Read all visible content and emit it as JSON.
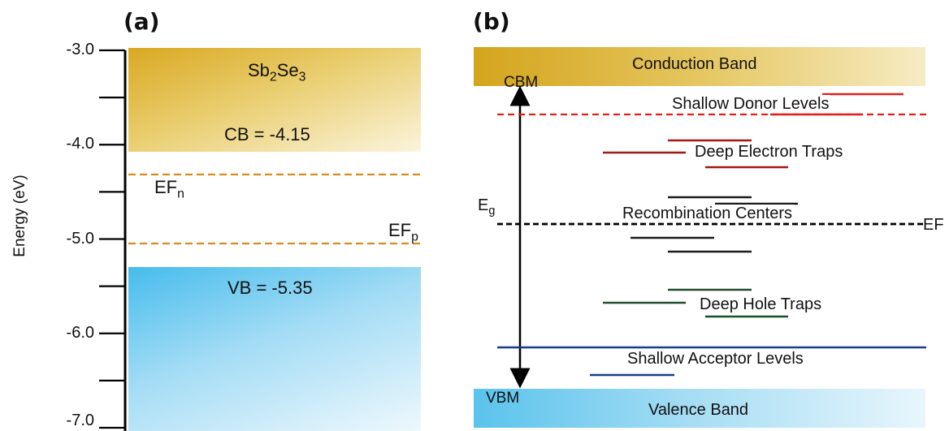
{
  "panel_a": {
    "label": "(a)",
    "axis_title": "Energy (eV)",
    "yticks": [
      "-3.0",
      "-4.0",
      "-5.0",
      "-6.0",
      "-7.0"
    ],
    "material_prefix": "Sb",
    "material_sub1": "2",
    "material_mid": "Se",
    "material_sub2": "3",
    "cb_text": "CB = -4.15",
    "vb_text": "VB = -5.35",
    "efn_main": "EF",
    "efn_sub": "n",
    "efp_main": "EF",
    "efp_sub": "p",
    "colors": {
      "cb": "#d9a821",
      "vb": "#46bcec",
      "fermi": "#d98b1c"
    }
  },
  "panel_b": {
    "label": "(b)",
    "conduction_band": "Conduction Band",
    "valence_band": "Valence Band",
    "cbm": "CBM",
    "vbm": "VBM",
    "eg_main": "E",
    "eg_sub": "g",
    "ef_label": "EF",
    "shallow_donor": "Shallow Donor Levels",
    "deep_electron": "Deep Electron Traps",
    "recombination": "Recombination Centers",
    "deep_hole": "Deep Hole Traps",
    "shallow_acceptor": "Shallow Acceptor Levels",
    "colors": {
      "donor": "#e0201b",
      "electron_trap": "#a31717",
      "recombination": "#1b1b1b",
      "hole_trap": "#1f4d2c",
      "acceptor": "#1b3a8a"
    }
  }
}
